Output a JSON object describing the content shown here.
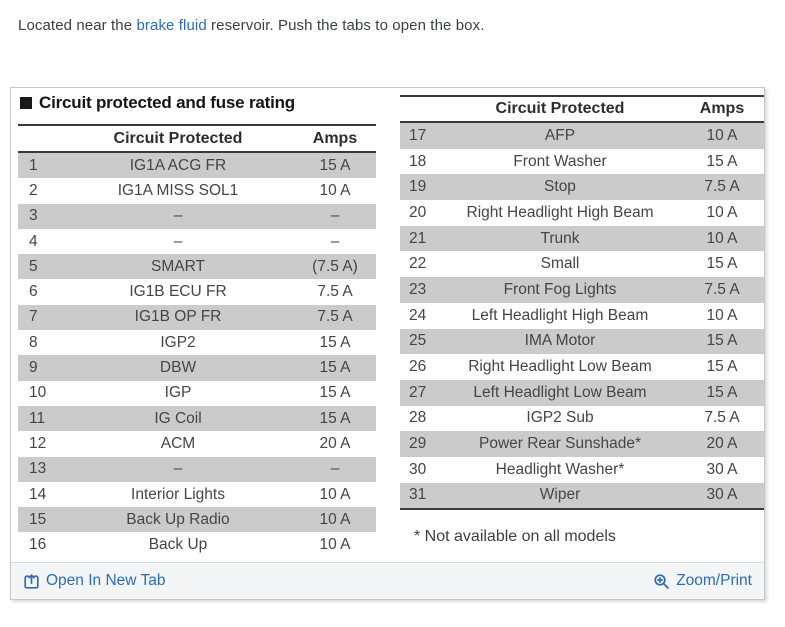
{
  "intro": {
    "prefix": "Located near the ",
    "link_text": "brake fluid",
    "suffix": " reservoir. Push the tabs to open the box."
  },
  "panel": {
    "title": "Circuit protected and fuse rating",
    "tables": [
      {
        "headers": {
          "circuit": "Circuit Protected",
          "amps": "Amps"
        },
        "rows": [
          {
            "num": "1",
            "circuit": "IG1A ACG FR",
            "amps": "15 A"
          },
          {
            "num": "2",
            "circuit": "IG1A MISS SOL1",
            "amps": "10 A"
          },
          {
            "num": "3",
            "circuit": "–",
            "amps": "–"
          },
          {
            "num": "4",
            "circuit": "–",
            "amps": "–"
          },
          {
            "num": "5",
            "circuit": "SMART",
            "amps": "(7.5 A)"
          },
          {
            "num": "6",
            "circuit": "IG1B ECU FR",
            "amps": "7.5 A"
          },
          {
            "num": "7",
            "circuit": "IG1B OP FR",
            "amps": "7.5 A"
          },
          {
            "num": "8",
            "circuit": "IGP2",
            "amps": "15 A"
          },
          {
            "num": "9",
            "circuit": "DBW",
            "amps": "15 A"
          },
          {
            "num": "10",
            "circuit": "IGP",
            "amps": "15 A"
          },
          {
            "num": "11",
            "circuit": "IG Coil",
            "amps": "15 A"
          },
          {
            "num": "12",
            "circuit": "ACM",
            "amps": "20 A"
          },
          {
            "num": "13",
            "circuit": "–",
            "amps": "–"
          },
          {
            "num": "14",
            "circuit": "Interior Lights",
            "amps": "10 A"
          },
          {
            "num": "15",
            "circuit": "Back Up Radio",
            "amps": "10 A"
          },
          {
            "num": "16",
            "circuit": "Back Up",
            "amps": "10 A"
          }
        ]
      },
      {
        "headers": {
          "circuit": "Circuit Protected",
          "amps": "Amps"
        },
        "rows": [
          {
            "num": "17",
            "circuit": "AFP",
            "amps": "10 A"
          },
          {
            "num": "18",
            "circuit": "Front Washer",
            "amps": "15 A"
          },
          {
            "num": "19",
            "circuit": "Stop",
            "amps": "7.5 A"
          },
          {
            "num": "20",
            "circuit": "Right Headlight High Beam",
            "amps": "10 A"
          },
          {
            "num": "21",
            "circuit": "Trunk",
            "amps": "10 A"
          },
          {
            "num": "22",
            "circuit": "Small",
            "amps": "15 A"
          },
          {
            "num": "23",
            "circuit": "Front Fog Lights",
            "amps": "7.5 A"
          },
          {
            "num": "24",
            "circuit": "Left Headlight High Beam",
            "amps": "10 A"
          },
          {
            "num": "25",
            "circuit": "IMA Motor",
            "amps": "15 A"
          },
          {
            "num": "26",
            "circuit": "Right Headlight Low Beam",
            "amps": "15 A"
          },
          {
            "num": "27",
            "circuit": "Left Headlight Low Beam",
            "amps": "15 A"
          },
          {
            "num": "28",
            "circuit": "IGP2 Sub",
            "amps": "7.5 A"
          },
          {
            "num": "29",
            "circuit": "Power Rear Sunshade*",
            "amps": "20 A"
          },
          {
            "num": "30",
            "circuit": "Headlight Washer*",
            "amps": "30 A"
          },
          {
            "num": "31",
            "circuit": "Wiper",
            "amps": "30 A"
          }
        ]
      }
    ],
    "footnote": "* Not available on all models",
    "footer": {
      "open_label": "Open In New Tab",
      "open_icon": "box-arrow-up-icon",
      "zoom_label": "Zoom/Print",
      "zoom_icon": "magnifier-plus-icon"
    }
  },
  "colors": {
    "shaded_row": "#cbcbcb",
    "rule": "#3a3a3a",
    "link": "#2a6cbb",
    "footer_bg": "#f4f5f7"
  }
}
